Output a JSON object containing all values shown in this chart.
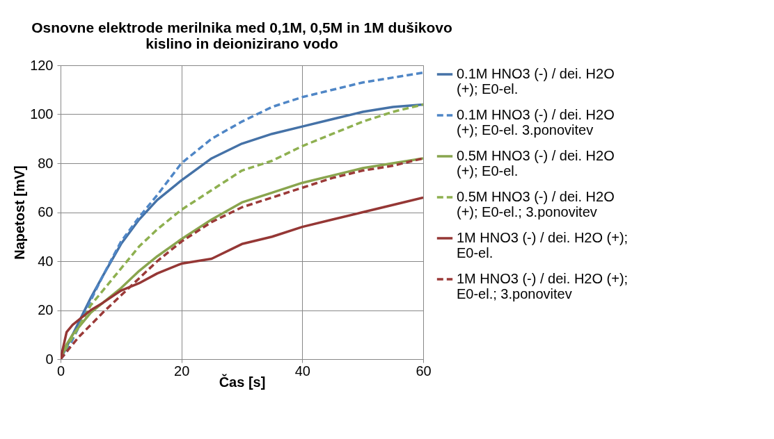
{
  "chart_data": {
    "type": "line",
    "title": "Osnovne elektrode merilnika med 0,1M, 0,5M in 1M dušikovo kislino in deionizirano  vodo",
    "xlabel": "Čas [s]",
    "ylabel": "Napetost [mV]",
    "x": [
      0,
      1,
      2,
      3,
      5,
      7,
      10,
      13,
      16,
      20,
      25,
      30,
      35,
      40,
      45,
      50,
      55,
      60
    ],
    "xlim": [
      0,
      60
    ],
    "xticks": [
      0,
      20,
      40,
      60
    ],
    "ylim": [
      0,
      120
    ],
    "yticks": [
      0,
      20,
      40,
      60,
      80,
      100,
      120
    ],
    "grid": true,
    "legend": "right",
    "marker": "none",
    "series": [
      {
        "name": "0.1M HNO3 (-) / dei. H2O (+); E0-el.",
        "color": "#4572a7",
        "line_style": "solid",
        "values": [
          0,
          5,
          10,
          15,
          25,
          34,
          47,
          57,
          65,
          73,
          82,
          88,
          92,
          95,
          98,
          101,
          103,
          104
        ]
      },
      {
        "name": "0.1M HNO3 (-) / dei. H2O (+); E0-el. 3.ponovitev",
        "color": "#4f86c6",
        "line_style": "dashed",
        "values": [
          0,
          3,
          8,
          13,
          24,
          34,
          48,
          58,
          67,
          80,
          90,
          97,
          103,
          107,
          110,
          113,
          115,
          117
        ]
      },
      {
        "name": "0.5M HNO3 (-) / dei. H2O (+); E0-el.",
        "color": "#89a54e",
        "line_style": "solid",
        "values": [
          0,
          6,
          10,
          13,
          19,
          23,
          29,
          36,
          42,
          49,
          57,
          64,
          68,
          72,
          75,
          78,
          80,
          82
        ]
      },
      {
        "name": "0.5M HNO3 (-) / dei. H2O (+); E0-el.; 3.ponovitev",
        "color": "#8eb050",
        "line_style": "dashed",
        "values": [
          0,
          5,
          9,
          13,
          22,
          28,
          37,
          46,
          53,
          61,
          69,
          77,
          81,
          87,
          92,
          97,
          101,
          104
        ]
      },
      {
        "name": "1M HNO3 (-) / dei. H2O (+); E0-el.",
        "color": "#953735",
        "line_style": "solid",
        "values": [
          0,
          11,
          14,
          16,
          20,
          23,
          28,
          31,
          35,
          39,
          41,
          47,
          50,
          54,
          57,
          60,
          63,
          66
        ]
      },
      {
        "name": "1M HNO3 (-) / dei. H2O (+); E0-el.; 3.ponovitev",
        "color": "#9b3a38",
        "line_style": "dashed",
        "values": [
          0,
          3,
          6,
          9,
          14,
          19,
          26,
          33,
          40,
          48,
          56,
          62,
          66,
          70,
          74,
          77,
          79,
          82
        ]
      }
    ]
  }
}
